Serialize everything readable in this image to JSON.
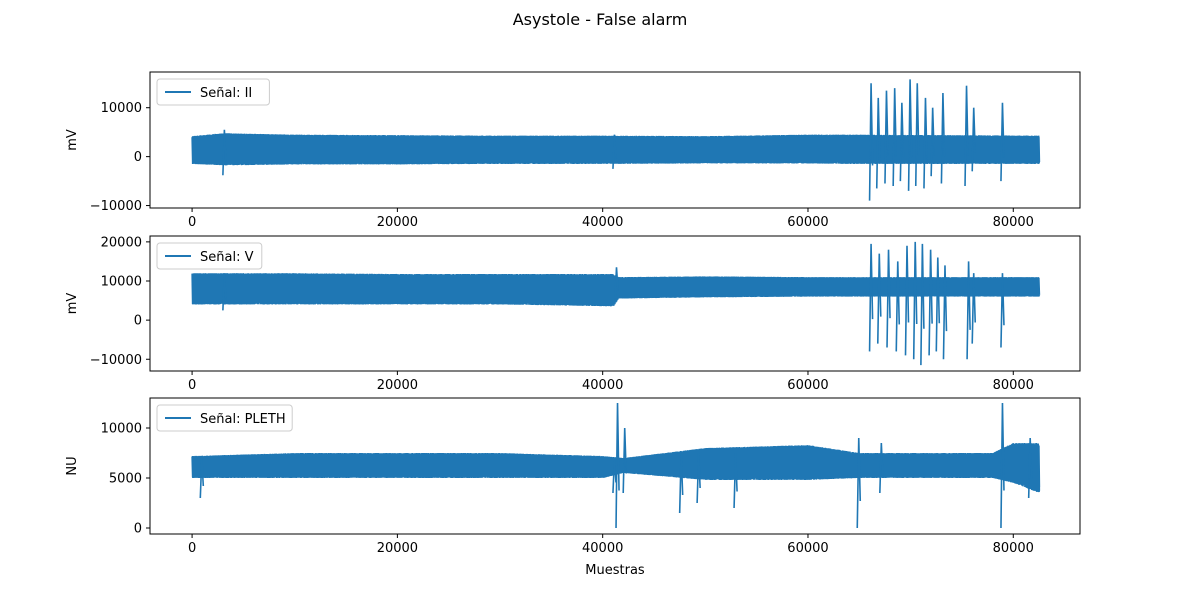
{
  "title": "Asystole - False alarm",
  "colors": {
    "series": "#1f77b4",
    "axes": "#000000",
    "legend_border": "#cccccc",
    "background": "#ffffff"
  },
  "chart_data": [
    {
      "type": "line",
      "legend": "Señal: II",
      "legend_position": "upper-left",
      "ylabel": "mV",
      "xlabel": "",
      "xlim": [
        -4100,
        86500
      ],
      "ylim": [
        -10500,
        17300
      ],
      "xticks": [
        0,
        20000,
        40000,
        60000,
        80000
      ],
      "xtick_labels": [
        "0",
        "20000",
        "40000",
        "60000",
        "80000"
      ],
      "yticks": [
        -10000,
        0,
        10000
      ],
      "ytick_labels": [
        "−10000",
        "0",
        "10000"
      ],
      "x_range": [
        0,
        82500
      ],
      "envelope": [
        {
          "x": 0,
          "lo": -1500,
          "hi": 4200
        },
        {
          "x": 3000,
          "lo": -1800,
          "hi": 4800
        },
        {
          "x": 10000,
          "lo": -1600,
          "hi": 4500
        },
        {
          "x": 20000,
          "lo": -1600,
          "hi": 4400
        },
        {
          "x": 30000,
          "lo": -1500,
          "hi": 4300
        },
        {
          "x": 40000,
          "lo": -1500,
          "hi": 4300
        },
        {
          "x": 50000,
          "lo": -1400,
          "hi": 4200
        },
        {
          "x": 60000,
          "lo": -1400,
          "hi": 4500
        },
        {
          "x": 64000,
          "lo": -1500,
          "hi": 4500
        },
        {
          "x": 82500,
          "lo": -1500,
          "hi": 4300
        }
      ],
      "artifacts": [
        {
          "x": 3000,
          "lo": -3800,
          "hi": 5500
        },
        {
          "x": 41000,
          "lo": -2500,
          "hi": 4500
        },
        {
          "x": 66000,
          "lo": -9000,
          "hi": 15000
        },
        {
          "x": 66700,
          "lo": -6500,
          "hi": 12000
        },
        {
          "x": 67500,
          "lo": -5500,
          "hi": 13500
        },
        {
          "x": 68300,
          "lo": -6000,
          "hi": 14000
        },
        {
          "x": 69000,
          "lo": -5000,
          "hi": 11000
        },
        {
          "x": 69800,
          "lo": -7000,
          "hi": 15800
        },
        {
          "x": 70500,
          "lo": -6000,
          "hi": 15000
        },
        {
          "x": 71300,
          "lo": -6500,
          "hi": 12000
        },
        {
          "x": 72000,
          "lo": -4000,
          "hi": 10000
        },
        {
          "x": 73000,
          "lo": -5500,
          "hi": 13000
        },
        {
          "x": 75300,
          "lo": -6000,
          "hi": 14500
        },
        {
          "x": 76000,
          "lo": -3000,
          "hi": 10000
        },
        {
          "x": 78800,
          "lo": -5000,
          "hi": 11000
        }
      ]
    },
    {
      "type": "line",
      "legend": "Señal: V",
      "legend_position": "upper-left",
      "ylabel": "mV",
      "xlabel": "",
      "xlim": [
        -4100,
        86500
      ],
      "ylim": [
        -13000,
        21500
      ],
      "xticks": [
        0,
        20000,
        40000,
        60000,
        80000
      ],
      "xtick_labels": [
        "0",
        "20000",
        "40000",
        "60000",
        "80000"
      ],
      "yticks": [
        -10000,
        0,
        10000,
        20000
      ],
      "ytick_labels": [
        "−10000",
        "0",
        "10000",
        "20000"
      ],
      "x_range": [
        0,
        82500
      ],
      "envelope": [
        {
          "x": 0,
          "lo": 4000,
          "hi": 12000
        },
        {
          "x": 10000,
          "lo": 4000,
          "hi": 12000
        },
        {
          "x": 20000,
          "lo": 4000,
          "hi": 11800
        },
        {
          "x": 30000,
          "lo": 4000,
          "hi": 11800
        },
        {
          "x": 41000,
          "lo": 3500,
          "hi": 11800
        },
        {
          "x": 41500,
          "lo": 5500,
          "hi": 11000
        },
        {
          "x": 50000,
          "lo": 5800,
          "hi": 11200
        },
        {
          "x": 60000,
          "lo": 6000,
          "hi": 11000
        },
        {
          "x": 65000,
          "lo": 6000,
          "hi": 11000
        },
        {
          "x": 82500,
          "lo": 6000,
          "hi": 11000
        }
      ],
      "artifacts": [
        {
          "x": 3000,
          "lo": 2500,
          "hi": 12000
        },
        {
          "x": 41200,
          "lo": 5000,
          "hi": 13500
        },
        {
          "x": 66000,
          "lo": -8000,
          "hi": 19500
        },
        {
          "x": 66800,
          "lo": -6000,
          "hi": 17000
        },
        {
          "x": 67700,
          "lo": -7000,
          "hi": 18000
        },
        {
          "x": 68600,
          "lo": -8000,
          "hi": 15000
        },
        {
          "x": 69500,
          "lo": -9000,
          "hi": 19000
        },
        {
          "x": 70300,
          "lo": -10000,
          "hi": 20000
        },
        {
          "x": 71000,
          "lo": -11500,
          "hi": 19500
        },
        {
          "x": 71800,
          "lo": -9000,
          "hi": 18000
        },
        {
          "x": 72500,
          "lo": -8000,
          "hi": 16000
        },
        {
          "x": 73200,
          "lo": -10000,
          "hi": 14000
        },
        {
          "x": 75500,
          "lo": -10000,
          "hi": 15000
        },
        {
          "x": 76000,
          "lo": -6000,
          "hi": 12000
        },
        {
          "x": 78800,
          "lo": -7000,
          "hi": 12000
        }
      ]
    },
    {
      "type": "line",
      "legend": "Señal: PLETH",
      "legend_position": "upper-left",
      "ylabel": "NU",
      "xlabel": "Muestras",
      "xlim": [
        -4100,
        86500
      ],
      "ylim": [
        -600,
        13000
      ],
      "xticks": [
        0,
        20000,
        40000,
        60000,
        80000
      ],
      "xtick_labels": [
        "0",
        "20000",
        "40000",
        "60000",
        "80000"
      ],
      "yticks": [
        0,
        5000,
        10000
      ],
      "ytick_labels": [
        "0",
        "5000",
        "10000"
      ],
      "x_range": [
        0,
        82500
      ],
      "envelope": [
        {
          "x": 0,
          "lo": 5000,
          "hi": 7200
        },
        {
          "x": 10000,
          "lo": 5000,
          "hi": 7500
        },
        {
          "x": 20000,
          "lo": 5000,
          "hi": 7500
        },
        {
          "x": 30000,
          "lo": 5000,
          "hi": 7500
        },
        {
          "x": 40000,
          "lo": 5000,
          "hi": 7200
        },
        {
          "x": 42000,
          "lo": 5500,
          "hi": 7000
        },
        {
          "x": 50000,
          "lo": 4800,
          "hi": 8000
        },
        {
          "x": 60000,
          "lo": 4800,
          "hi": 8300
        },
        {
          "x": 65000,
          "lo": 5000,
          "hi": 7500
        },
        {
          "x": 78000,
          "lo": 5000,
          "hi": 7500
        },
        {
          "x": 80000,
          "lo": 4500,
          "hi": 8500
        },
        {
          "x": 82500,
          "lo": 3500,
          "hi": 8500
        }
      ],
      "artifacts": [
        {
          "x": 800,
          "lo": 3000,
          "hi": 7000
        },
        {
          "x": 41000,
          "lo": 3500,
          "hi": 7000
        },
        {
          "x": 41300,
          "lo": 0,
          "hi": 12500
        },
        {
          "x": 42000,
          "lo": 3500,
          "hi": 10000
        },
        {
          "x": 47500,
          "lo": 1500,
          "hi": 7500
        },
        {
          "x": 49200,
          "lo": 2500,
          "hi": 7500
        },
        {
          "x": 52800,
          "lo": 2000,
          "hi": 7500
        },
        {
          "x": 64800,
          "lo": 0,
          "hi": 9000
        },
        {
          "x": 67000,
          "lo": 3500,
          "hi": 8500
        },
        {
          "x": 78800,
          "lo": 0,
          "hi": 12500
        },
        {
          "x": 81500,
          "lo": 3000,
          "hi": 9000
        }
      ]
    }
  ]
}
